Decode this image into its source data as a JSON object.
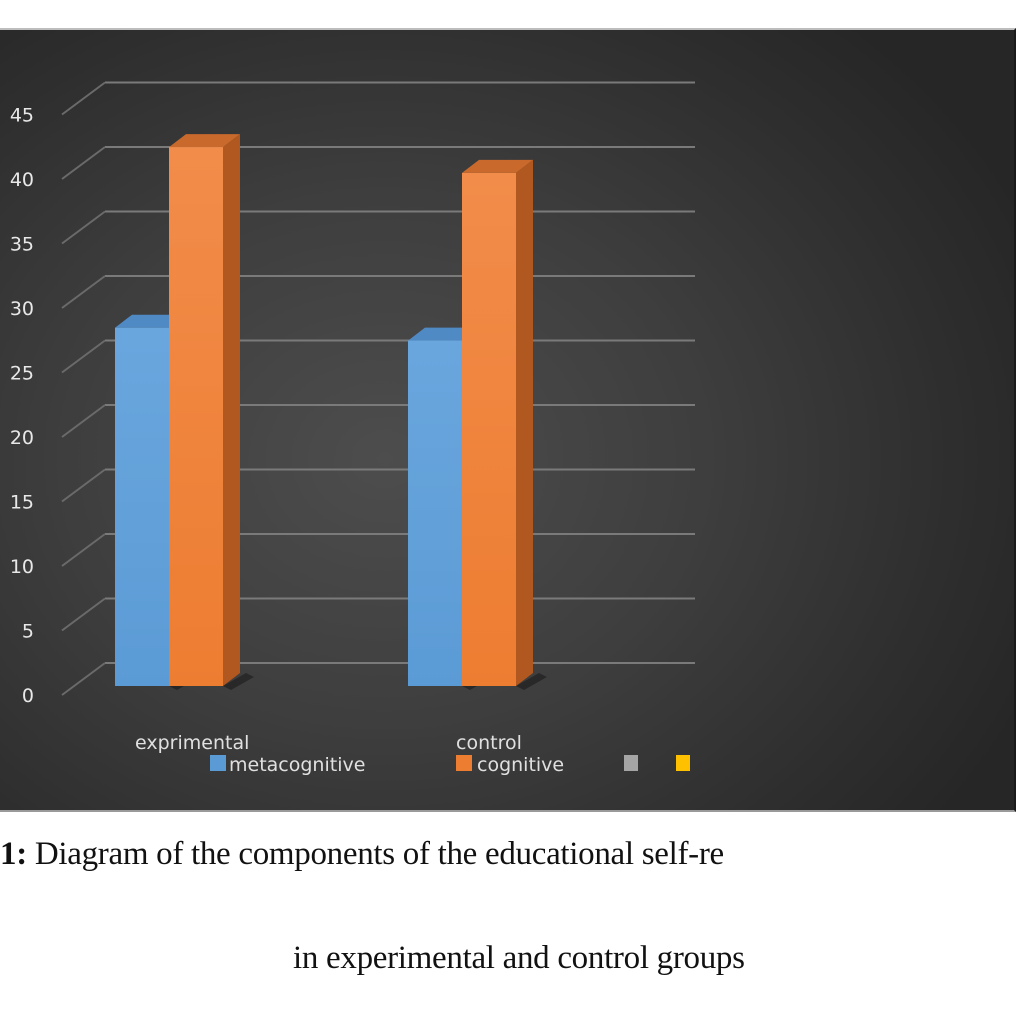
{
  "chart_data": {
    "type": "bar",
    "style": "3d-clustered-column",
    "title": "",
    "xlabel": "",
    "ylabel": "",
    "categories": [
      "exprimental",
      "control"
    ],
    "series": [
      {
        "name": "metacognitive",
        "color": "#5b9bd5",
        "values": [
          27,
          26
        ]
      },
      {
        "name": "cognitive",
        "color": "#ed7d31",
        "values": [
          41,
          39
        ]
      },
      {
        "name": "",
        "color": "#a5a5a5",
        "values": []
      },
      {
        "name": "",
        "color": "#ffc000",
        "values": []
      }
    ],
    "y_ticks": [
      0,
      5,
      10,
      15,
      20,
      25,
      30,
      35,
      40,
      45
    ],
    "ylim": [
      0,
      45
    ],
    "grid": true,
    "legend_position": "bottom",
    "background": "dark-gradient"
  },
  "axis": {
    "y_ticks": [
      "0",
      "5",
      "10",
      "15",
      "20",
      "25",
      "30",
      "35",
      "40",
      "45"
    ]
  },
  "categories": {
    "c0": "exprimental",
    "c1": "control"
  },
  "legend": {
    "items": [
      {
        "label": "metacognitive",
        "color": "#5b9bd5"
      },
      {
        "label": "cognitive",
        "color": "#ed7d31"
      },
      {
        "label": "",
        "color": "#a5a5a5"
      },
      {
        "label": "",
        "color": "#ffc000"
      }
    ],
    "l0": "metacognitive",
    "l1": "cognitive"
  },
  "caption": {
    "fig_num": "1:",
    "line1": " Diagram of the components of the educational self-re",
    "line2": "in experimental and control groups"
  }
}
